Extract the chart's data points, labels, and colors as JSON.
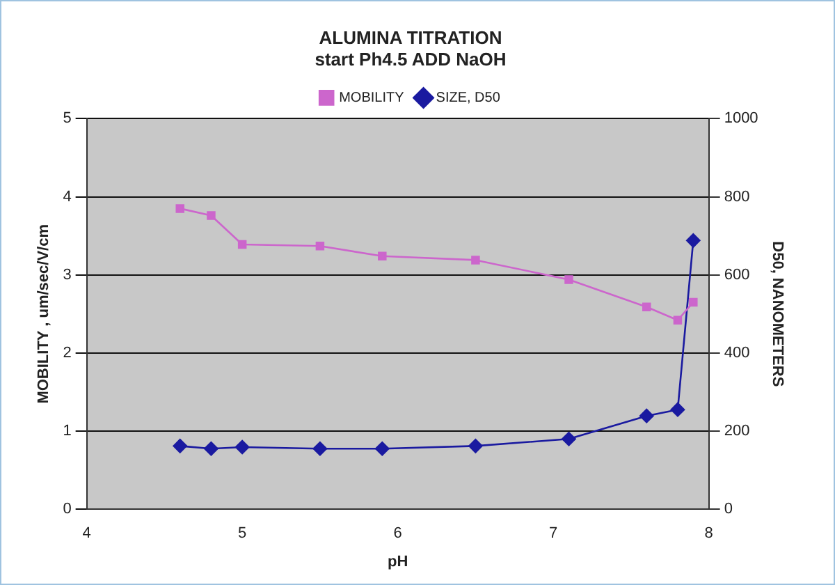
{
  "chart_data": {
    "type": "line",
    "title": "ALUMINA TITRATION\nstart Ph4.5 ADD NaOH",
    "xlabel": "pH",
    "ylabel": "MOBILITY , um/sec/V/cm",
    "y2label": "D50, NANOMETERS",
    "x": [
      4.6,
      4.8,
      5.0,
      5.5,
      5.9,
      6.5,
      7.1,
      7.6,
      7.8,
      7.9
    ],
    "series": [
      {
        "name": "MOBILITY",
        "color": "#cc66cc",
        "marker": "square",
        "values": [
          3.85,
          3.76,
          3.39,
          3.37,
          3.24,
          3.19,
          2.94,
          2.59,
          2.42,
          2.65
        ]
      },
      {
        "name": "SIZE, D50",
        "color": "#1a1aa0",
        "marker": "diamond",
        "axis": "y2",
        "values": [
          162,
          155,
          159,
          155,
          155,
          162,
          180,
          239,
          255,
          688
        ]
      }
    ],
    "xlim": [
      4,
      8
    ],
    "xticks": [
      4,
      5,
      6,
      7,
      8
    ],
    "ylim": [
      0,
      5
    ],
    "yticks": [
      0,
      1,
      2,
      3,
      4,
      5
    ],
    "y2lim": [
      0,
      1000
    ],
    "y2ticks": [
      0,
      200,
      400,
      600,
      800,
      1000
    ],
    "grid": "y",
    "legend": "top"
  }
}
